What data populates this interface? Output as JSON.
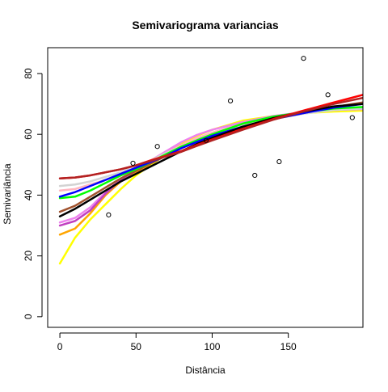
{
  "chart_data": {
    "type": "line",
    "title": "Semivariograma variancias",
    "xlabel": "Distância",
    "ylabel": "Semivariância",
    "xlim": [
      -8,
      199
    ],
    "ylim": [
      -3.5,
      88.5
    ],
    "xticks": [
      0,
      50,
      100,
      150
    ],
    "yticks": [
      0,
      20,
      40,
      60,
      80
    ],
    "grid": false,
    "points": [
      {
        "x": 32,
        "y": 33.5
      },
      {
        "x": 48,
        "y": 50.5
      },
      {
        "x": 64,
        "y": 56
      },
      {
        "x": 96,
        "y": 58
      },
      {
        "x": 112,
        "y": 71
      },
      {
        "x": 128,
        "y": 46.5
      },
      {
        "x": 144,
        "y": 51
      },
      {
        "x": 160,
        "y": 85
      },
      {
        "x": 176,
        "y": 73
      },
      {
        "x": 192,
        "y": 65.5
      }
    ],
    "series": [
      {
        "color": "#ffff00",
        "x": [
          0,
          10,
          20,
          30,
          40,
          50,
          60,
          70,
          80,
          90,
          100,
          120,
          140,
          160,
          180,
          199
        ],
        "values": [
          17.5,
          26,
          32,
          37,
          42,
          46.5,
          50,
          53.5,
          57,
          59.5,
          61.5,
          64.5,
          66,
          67,
          67.5,
          67.8
        ]
      },
      {
        "color": "#ffa500",
        "x": [
          0,
          10,
          20,
          30,
          40,
          50,
          60,
          70,
          80,
          90,
          100,
          120,
          140,
          160,
          180,
          199
        ],
        "values": [
          27,
          29,
          34,
          40,
          44.5,
          47.5,
          50.5,
          53.5,
          56.5,
          58.5,
          60.5,
          63.5,
          65.5,
          67,
          68,
          68.5
        ]
      },
      {
        "color": "#ee82ee",
        "x": [
          0,
          10,
          20,
          30,
          40,
          50,
          60,
          70,
          80,
          90,
          100,
          120,
          140,
          160,
          180,
          199
        ],
        "values": [
          31,
          32.5,
          36,
          41,
          45.5,
          48.5,
          51.5,
          54.5,
          57.5,
          59.8,
          61.5,
          64,
          66,
          67.3,
          68,
          68.3
        ]
      },
      {
        "color": "#c040c0",
        "x": [
          0,
          10,
          20,
          30,
          40,
          50,
          60,
          70,
          80,
          90,
          100,
          120,
          140,
          160,
          180,
          199
        ],
        "values": [
          30,
          31.5,
          35,
          40.5,
          45,
          48,
          51,
          54,
          56.5,
          58.5,
          60.5,
          63.5,
          65.5,
          67,
          68,
          68.5
        ]
      },
      {
        "color": "#ffb6c1",
        "x": [
          0,
          10,
          20,
          30,
          40,
          50,
          60,
          70,
          80,
          90,
          100,
          120,
          140,
          160,
          180,
          199
        ],
        "values": [
          41.5,
          42,
          43.5,
          45,
          47,
          49,
          51.5,
          54,
          56.5,
          58.8,
          60.5,
          63.5,
          65.5,
          67,
          68,
          68.5
        ]
      },
      {
        "color": "#d3d3d3",
        "x": [
          0,
          10,
          20,
          30,
          40,
          50,
          60,
          70,
          80,
          90,
          100,
          120,
          140,
          160,
          180,
          199
        ],
        "values": [
          43,
          43.5,
          44.5,
          46,
          47.5,
          49.5,
          51.5,
          54,
          56,
          58,
          59.8,
          62.8,
          65,
          66.8,
          68,
          68.5
        ]
      },
      {
        "color": "#a0522d",
        "x": [
          0,
          10,
          20,
          30,
          40,
          50,
          60,
          70,
          80,
          90,
          100,
          120,
          140,
          160,
          180,
          199
        ],
        "values": [
          34.5,
          36.5,
          39.5,
          42.5,
          45.5,
          48,
          50.5,
          53,
          55.5,
          57.5,
          59.5,
          62.5,
          65,
          67,
          69,
          70.5
        ]
      },
      {
        "color": "#00ff00",
        "x": [
          0,
          10,
          20,
          30,
          40,
          50,
          60,
          70,
          80,
          90,
          100,
          120,
          140,
          160,
          180,
          199
        ],
        "values": [
          39,
          39.5,
          41.5,
          44,
          46.5,
          48.5,
          51,
          53.5,
          56,
          58,
          60,
          63.5,
          65.8,
          67.3,
          68.5,
          69
        ]
      },
      {
        "color": "#0000ff",
        "x": [
          0,
          10,
          20,
          30,
          40,
          50,
          60,
          70,
          80,
          90,
          100,
          120,
          140,
          160,
          180,
          199
        ],
        "values": [
          39.5,
          41,
          43,
          45,
          47,
          49,
          51,
          53,
          55.5,
          57.5,
          59.5,
          62.5,
          65,
          67,
          68.8,
          70
        ]
      },
      {
        "color": "#000000",
        "x": [
          0,
          10,
          20,
          30,
          40,
          50,
          60,
          70,
          80,
          90,
          100,
          120,
          140,
          160,
          180,
          199
        ],
        "values": [
          33,
          35.5,
          38.5,
          41.5,
          44.5,
          47,
          49.5,
          52,
          54.5,
          56.8,
          58.8,
          62.5,
          65.3,
          67.5,
          69.2,
          70
        ]
      },
      {
        "color": "#ff0000",
        "x": [
          0,
          10,
          20,
          30,
          40,
          50,
          60,
          70,
          80,
          90,
          100,
          120,
          140,
          160,
          180,
          199
        ],
        "values": [
          45.5,
          45.8,
          46.5,
          47.5,
          48.5,
          49.8,
          51.5,
          53,
          54.5,
          56.5,
          58.3,
          61.8,
          65,
          67.8,
          70.5,
          73
        ]
      },
      {
        "color": "#b22222",
        "x": [
          0,
          10,
          20,
          30,
          40,
          50,
          60,
          70,
          80,
          90,
          100,
          120,
          140,
          160,
          180,
          199
        ],
        "values": [
          45.5,
          45.8,
          46.5,
          47.5,
          48.5,
          49.8,
          51.3,
          52.8,
          54.3,
          56.2,
          58,
          61.5,
          64.8,
          67.5,
          70,
          72
        ]
      }
    ]
  }
}
